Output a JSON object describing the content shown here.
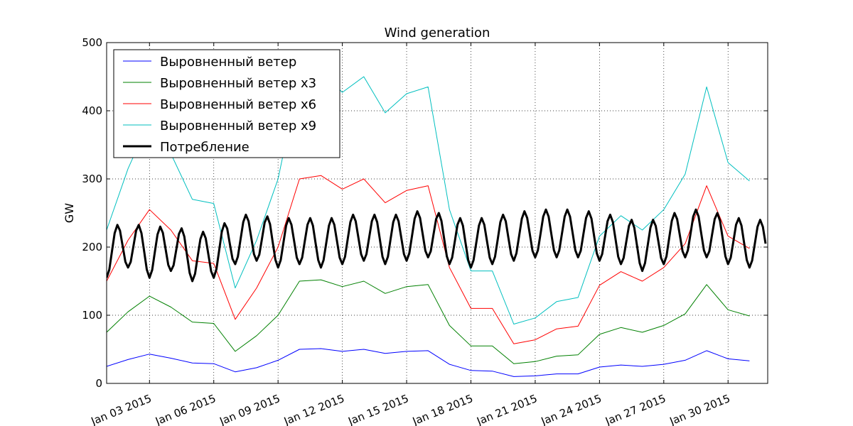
{
  "chart_data": {
    "type": "line",
    "title": "Wind generation",
    "xlabel": "",
    "ylabel": "GW",
    "xlim": [
      "2015-01-01",
      "2015-01-31"
    ],
    "ylim": [
      0,
      500
    ],
    "yticks": [
      0,
      100,
      200,
      300,
      400,
      500
    ],
    "xticks": [
      {
        "date": "2015-01-03",
        "label": "Jan 03 2015"
      },
      {
        "date": "2015-01-06",
        "label": "Jan 06 2015"
      },
      {
        "date": "2015-01-09",
        "label": "Jan 09 2015"
      },
      {
        "date": "2015-01-12",
        "label": "Jan 12 2015"
      },
      {
        "date": "2015-01-15",
        "label": "Jan 15 2015"
      },
      {
        "date": "2015-01-18",
        "label": "Jan 18 2015"
      },
      {
        "date": "2015-01-21",
        "label": "Jan 21 2015"
      },
      {
        "date": "2015-01-24",
        "label": "Jan 24 2015"
      },
      {
        "date": "2015-01-27",
        "label": "Jan 27 2015"
      },
      {
        "date": "2015-01-30",
        "label": "Jan 30 2015"
      }
    ],
    "grid": true,
    "legend_position": "top-left",
    "x": [
      "2015-01-01",
      "2015-01-02",
      "2015-01-03",
      "2015-01-04",
      "2015-01-05",
      "2015-01-06",
      "2015-01-07",
      "2015-01-08",
      "2015-01-09",
      "2015-01-10",
      "2015-01-11",
      "2015-01-12",
      "2015-01-13",
      "2015-01-14",
      "2015-01-15",
      "2015-01-16",
      "2015-01-17",
      "2015-01-18",
      "2015-01-19",
      "2015-01-20",
      "2015-01-21",
      "2015-01-22",
      "2015-01-23",
      "2015-01-24",
      "2015-01-25",
      "2015-01-26",
      "2015-01-27",
      "2015-01-28",
      "2015-01-29",
      "2015-01-30",
      "2015-01-31"
    ],
    "series": [
      {
        "name": "Выровненный ветер",
        "color": "#0000ff",
        "width": 1,
        "values": [
          25,
          35,
          43,
          37,
          30,
          29,
          17,
          23,
          34,
          50,
          51,
          47,
          50,
          44,
          47,
          48,
          28,
          19,
          18,
          10,
          11,
          14,
          14,
          24,
          27,
          25,
          28,
          34,
          48,
          36,
          33
        ]
      },
      {
        "name": "Выровненный ветер x3",
        "color": "#008000",
        "width": 1,
        "values": [
          75,
          105,
          128,
          112,
          90,
          88,
          47,
          70,
          100,
          150,
          152,
          142,
          150,
          132,
          142,
          145,
          85,
          55,
          55,
          29,
          32,
          40,
          42,
          72,
          82,
          75,
          85,
          102,
          145,
          108,
          99
        ]
      },
      {
        "name": "Выровненный ветер x6",
        "color": "#ff0000",
        "width": 1,
        "values": [
          150,
          210,
          255,
          225,
          180,
          176,
          94,
          140,
          200,
          300,
          305,
          285,
          300,
          265,
          283,
          290,
          170,
          110,
          110,
          58,
          64,
          80,
          84,
          144,
          164,
          150,
          170,
          205,
          290,
          216,
          198
        ]
      },
      {
        "name": "Выровненный ветер x9",
        "color": "#00bfbf",
        "width": 1,
        "values": [
          225,
          315,
          385,
          337,
          270,
          264,
          140,
          210,
          300,
          450,
          457,
          427,
          450,
          397,
          425,
          435,
          255,
          165,
          165,
          87,
          96,
          120,
          126,
          216,
          246,
          225,
          255,
          307,
          435,
          324,
          297
        ]
      },
      {
        "name": "Потребление",
        "color": "#000000",
        "width": 3,
        "base": [
          190,
          205,
          190,
          200,
          185,
          190,
          210,
          215,
          205,
          210,
          205,
          210,
          215,
          210,
          215,
          220,
          210,
          205,
          210,
          215,
          220,
          220,
          220,
          215,
          210,
          200,
          210,
          220,
          220,
          210,
          205
        ],
        "amplitude": 35
      }
    ]
  }
}
